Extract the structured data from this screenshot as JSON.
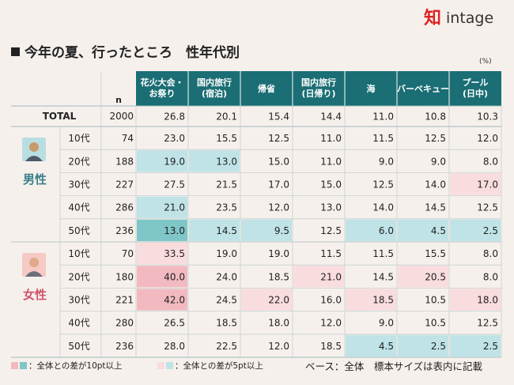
{
  "brand": {
    "mark": "知",
    "name": "intage"
  },
  "title": "今年の夏、行ったところ　性年代別",
  "unit": "(%)",
  "colors": {
    "strong_plus": "#f2b9c0",
    "weak_plus": "#f9dcde",
    "strong_minus": "#7fc6c8",
    "weak_minus": "#bfe3e6",
    "header": "#1a6e74"
  },
  "chart_data": {
    "type": "table",
    "n_header": "n",
    "columns": [
      "花火大会・\nお祭り",
      "国内旅行\n(宿泊)",
      "帰省",
      "国内旅行\n(日帰り)",
      "海",
      "バーベキュー",
      "プール\n(日中)"
    ],
    "total": {
      "label": "TOTAL",
      "n": "2000",
      "values": [
        "26.8",
        "20.1",
        "15.4",
        "14.4",
        "11.0",
        "10.8",
        "10.3"
      ]
    },
    "groups": [
      {
        "label": "男性",
        "rows": [
          {
            "age": "10代",
            "n": "74",
            "values": [
              "23.0",
              "15.5",
              "12.5",
              "11.0",
              "11.5",
              "12.5",
              "12.0"
            ]
          },
          {
            "age": "20代",
            "n": "188",
            "values": [
              "19.0",
              "13.0",
              "15.0",
              "11.0",
              "9.0",
              "9.0",
              "8.0"
            ]
          },
          {
            "age": "30代",
            "n": "227",
            "values": [
              "27.5",
              "21.5",
              "17.0",
              "15.0",
              "12.5",
              "14.0",
              "17.0"
            ]
          },
          {
            "age": "40代",
            "n": "286",
            "values": [
              "21.0",
              "23.5",
              "12.0",
              "13.0",
              "14.0",
              "14.5",
              "12.5"
            ]
          },
          {
            "age": "50代",
            "n": "236",
            "values": [
              "13.0",
              "14.5",
              "9.5",
              "12.5",
              "6.0",
              "4.5",
              "2.5"
            ]
          }
        ]
      },
      {
        "label": "女性",
        "rows": [
          {
            "age": "10代",
            "n": "70",
            "values": [
              "33.5",
              "19.0",
              "19.0",
              "11.5",
              "11.5",
              "15.5",
              "8.0"
            ]
          },
          {
            "age": "20代",
            "n": "180",
            "values": [
              "40.0",
              "24.0",
              "18.5",
              "21.0",
              "14.5",
              "20.5",
              "8.0"
            ]
          },
          {
            "age": "30代",
            "n": "221",
            "values": [
              "42.0",
              "24.5",
              "22.0",
              "16.0",
              "18.5",
              "10.5",
              "18.0"
            ]
          },
          {
            "age": "40代",
            "n": "280",
            "values": [
              "26.5",
              "18.5",
              "18.0",
              "12.0",
              "9.0",
              "10.5",
              "12.5"
            ]
          },
          {
            "age": "50代",
            "n": "236",
            "values": [
              "28.0",
              "22.5",
              "12.0",
              "18.5",
              "4.5",
              "2.5",
              "2.5"
            ]
          }
        ]
      }
    ]
  },
  "legend": {
    "strong_label": "：全体との差が10pt以上",
    "weak_label": "：全体との差が5pt以上"
  },
  "footnote": "ベース：全体　標本サイズは表内に記載"
}
